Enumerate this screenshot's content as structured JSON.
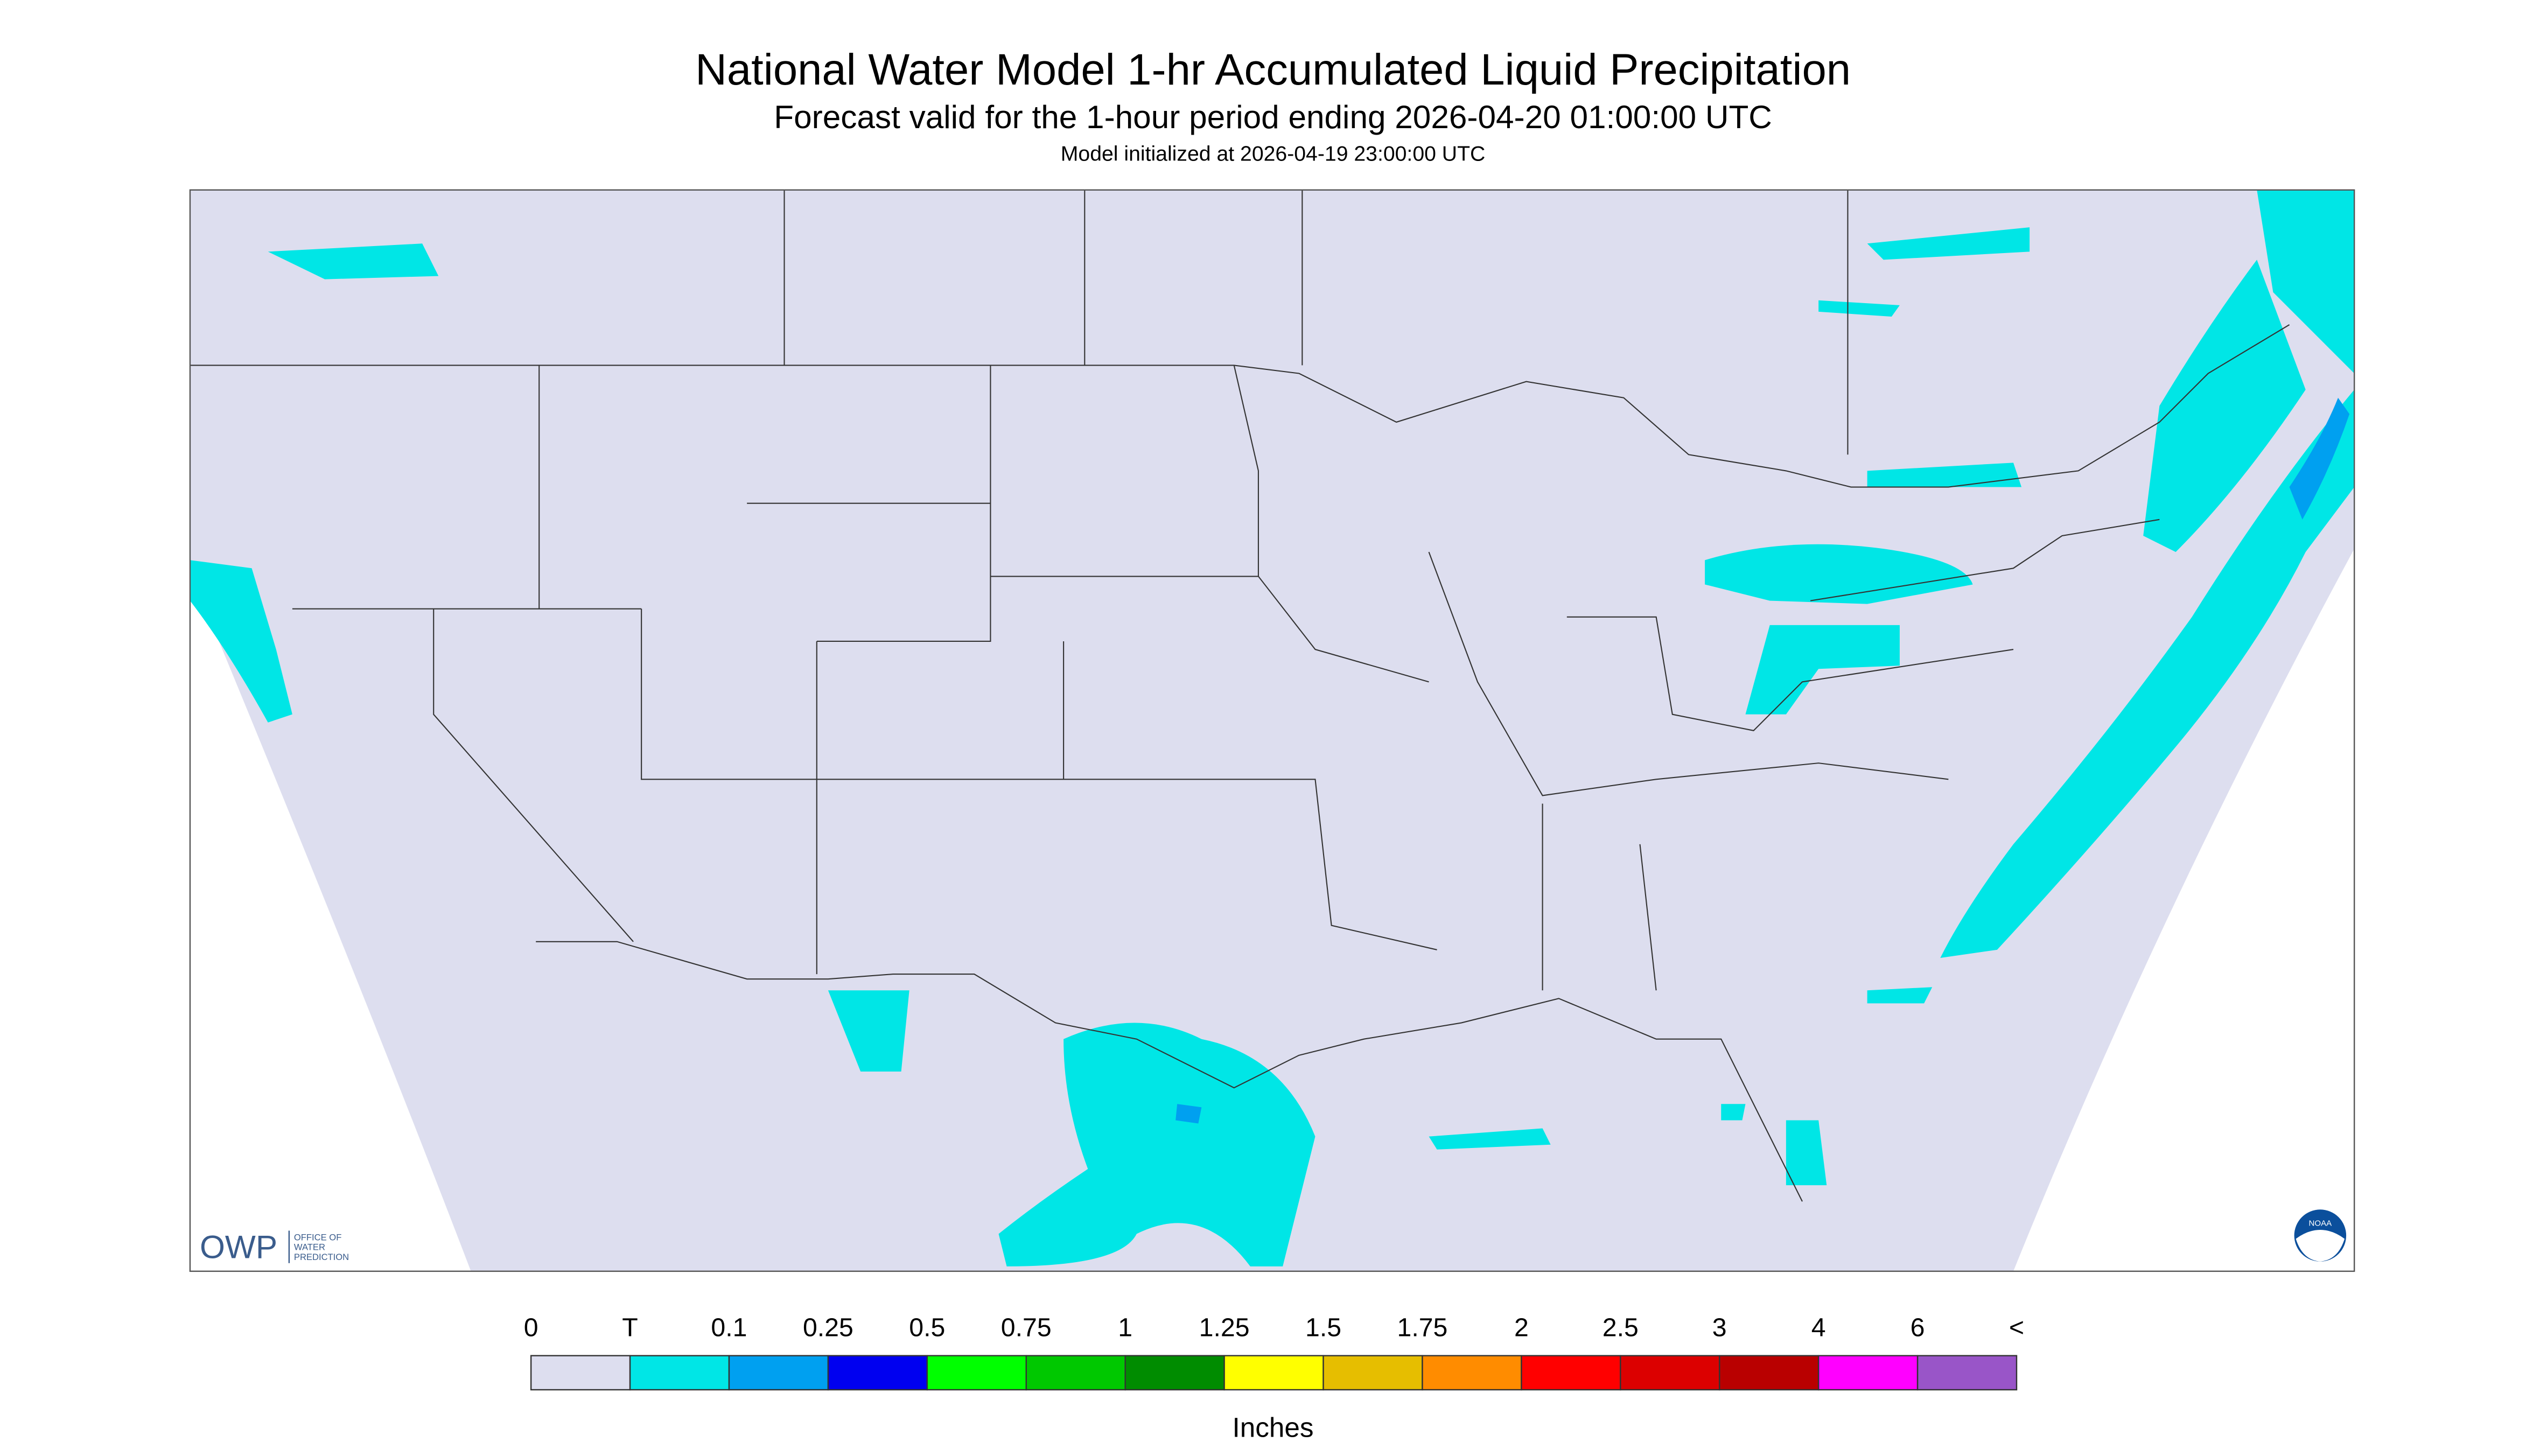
{
  "header": {
    "title": "National Water Model 1-hr Accumulated Liquid Precipitation",
    "subtitle": "Forecast valid for the 1-hour period ending 2026-04-20 01:00:00 UTC",
    "init": "Model initialized at 2026-04-19 23:00:00 UTC"
  },
  "legend": {
    "labels": [
      "0",
      "T",
      "0.1",
      "0.25",
      "0.5",
      "0.75",
      "1",
      "1.25",
      "1.5",
      "1.75",
      "2",
      "2.5",
      "3",
      "4",
      "6",
      "<"
    ],
    "colors": [
      "#dddeef",
      "#00e6e6",
      "#00a0f0",
      "#0000f0",
      "#00ff00",
      "#00c800",
      "#008c00",
      "#ffff00",
      "#e6be00",
      "#ff8c00",
      "#ff0000",
      "#dc0000",
      "#b90000",
      "#ff00ff",
      "#9955c8"
    ],
    "unit": "Inches"
  },
  "logos": {
    "owp": "OWP",
    "owp_name": [
      "OFFICE OF",
      "WATER",
      "PREDICTION"
    ],
    "noaa": "NOAA"
  }
}
